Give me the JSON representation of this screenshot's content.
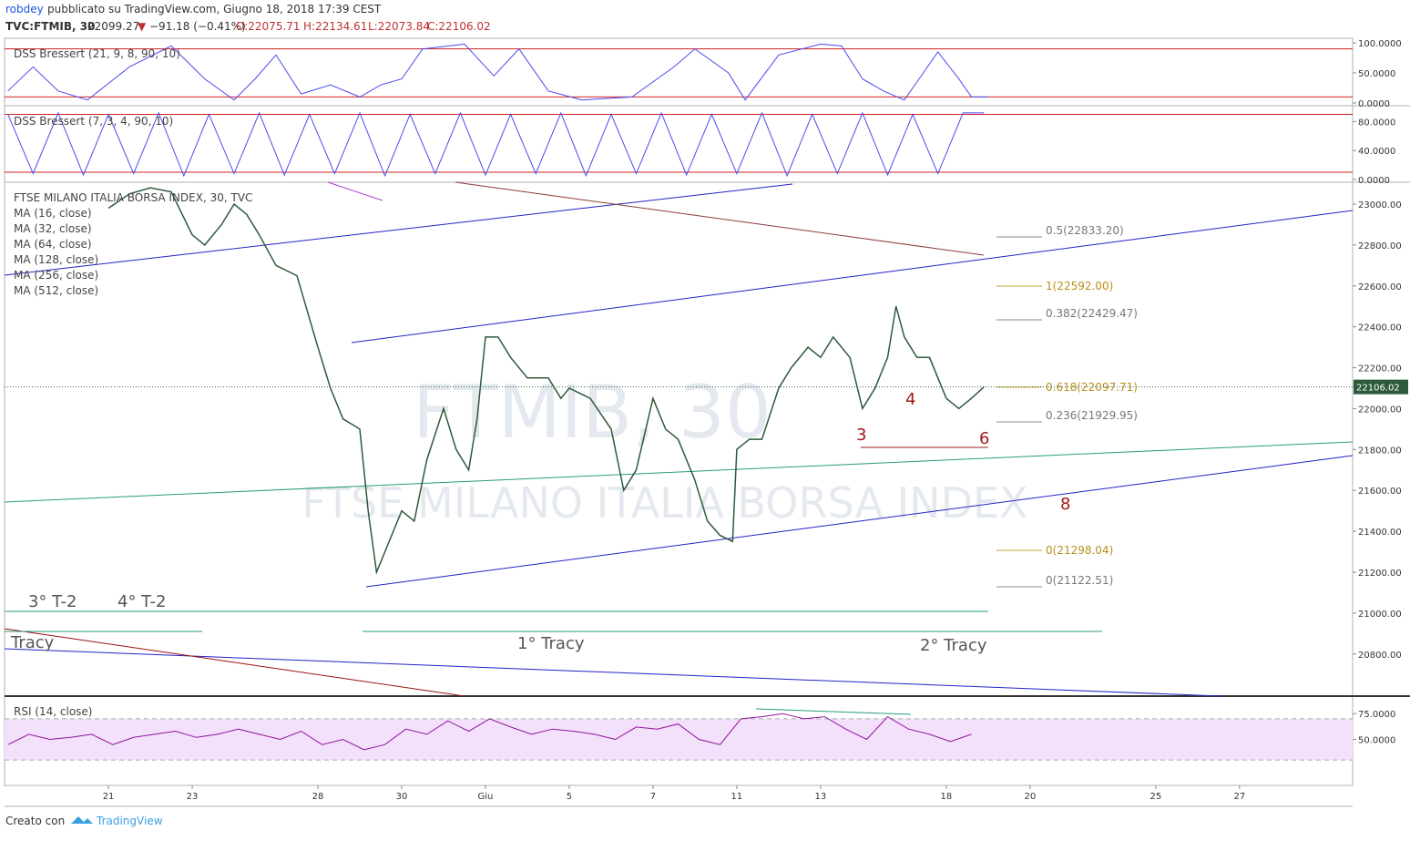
{
  "header": {
    "author": "robdey",
    "published": "pubblicato su TradingView.com, Giugno 18, 2018 17:39 CEST",
    "symbol": "TVC:FTMIB, 30",
    "price": "22099.27",
    "arrow": "▼",
    "change": "−91.18 (−0.41%)",
    "open": "O:22075.71",
    "high": "H:22134.61",
    "low": "L:22073.84",
    "close": "C:22106.02"
  },
  "footer": {
    "made_with": "Creato con",
    "brand": "TradingView"
  },
  "chart_data": [
    {
      "type": "line",
      "title": "DSS Bressert (21, 9, 8, 90, 10)",
      "color": "#4a4af0",
      "x": [
        -2.4,
        -1.8,
        -1.2,
        -0.5,
        0.5,
        1.5,
        2.3,
        3,
        3.5,
        4,
        4.6,
        5.3,
        6,
        6.5,
        7,
        7.5,
        8.5,
        9.2,
        9.8,
        10.5,
        11.3,
        12.5,
        13.5,
        14,
        14.8,
        15.2,
        16,
        17,
        17.5,
        18,
        18.5,
        19,
        19.8,
        20.3,
        20.6,
        21
      ],
      "values": [
        20,
        60,
        20,
        5,
        60,
        95,
        40,
        5,
        40,
        80,
        15,
        30,
        10,
        30,
        40,
        90,
        98,
        45,
        90,
        20,
        5,
        10,
        60,
        90,
        50,
        5,
        80,
        98,
        95,
        40,
        20,
        5,
        85,
        40,
        10,
        10
      ],
      "ylim": [
        -4.6,
        107.7
      ],
      "levels": [
        90,
        10
      ],
      "yticks": [
        {
          "value": 100,
          "label": "100.0000"
        },
        {
          "value": 50,
          "label": "50.0000"
        },
        {
          "value": 0,
          "label": "0.0000"
        }
      ]
    },
    {
      "type": "line",
      "title": "DSS Bressert (7, 3, 4, 90, 10)",
      "color": "#4a4af0",
      "x": [
        -2.4,
        -1.8,
        -1.2,
        -0.6,
        0,
        0.6,
        1.2,
        1.8,
        2.4,
        3,
        3.6,
        4.2,
        4.8,
        5.4,
        6,
        6.6,
        7.2,
        7.8,
        8.4,
        9,
        9.6,
        10.2,
        10.8,
        11.4,
        12,
        12.6,
        13.2,
        13.8,
        14.4,
        15,
        15.6,
        16.2,
        16.8,
        17.4,
        18,
        18.6,
        19.2,
        19.8,
        20.4,
        20.9
      ],
      "values": [
        90,
        8,
        92,
        6,
        90,
        8,
        92,
        5,
        90,
        8,
        92,
        6,
        90,
        8,
        92,
        5,
        90,
        8,
        92,
        6,
        90,
        8,
        92,
        5,
        90,
        8,
        92,
        6,
        90,
        8,
        92,
        5,
        90,
        8,
        92,
        6,
        90,
        8,
        92,
        92
      ],
      "ylim": [
        -3.9,
        101.9
      ],
      "levels": [
        90,
        10
      ],
      "yticks": [
        {
          "value": 80,
          "label": "80.0000"
        },
        {
          "value": 40,
          "label": "40.0000"
        },
        {
          "value": 0,
          "label": "0.0000"
        }
      ]
    },
    {
      "type": "line",
      "title": "FTSE MILANO ITALIA BORSA INDEX, 30, TVC",
      "color": "#2d5a3a",
      "legend": [
        "MA (16, close)",
        "MA (32, close)",
        "MA (64, close)",
        "MA (128, close)",
        "MA (256, close)",
        "MA (512, close)"
      ],
      "watermark_symbol": "FTMIB, 30",
      "watermark_name": "FTSE MILANO ITALIA BORSA INDEX",
      "x": [
        0,
        0.5,
        1,
        1.5,
        2,
        2.3,
        2.7,
        3,
        3.3,
        3.6,
        4,
        4.5,
        5,
        5.3,
        5.6,
        6,
        6.2,
        6.4,
        6.6,
        7,
        7.3,
        7.6,
        8,
        8.3,
        8.6,
        8.8,
        9,
        9.3,
        9.6,
        10,
        10.5,
        10.8,
        11,
        11.5,
        12,
        12.3,
        12.6,
        13,
        13.3,
        13.6,
        14,
        14.3,
        14.6,
        14.9,
        15,
        15.3,
        15.6,
        16,
        16.3,
        16.7,
        17,
        17.3,
        17.7,
        18,
        18.3,
        18.6,
        18.8,
        19,
        19.3,
        19.6,
        20,
        20.3,
        20.6,
        20.9
      ],
      "values": [
        22980,
        23050,
        23080,
        23060,
        22850,
        22800,
        22900,
        23000,
        22950,
        22850,
        22700,
        22650,
        22300,
        22100,
        21950,
        21900,
        21500,
        21200,
        21300,
        21500,
        21450,
        21750,
        22000,
        21800,
        21700,
        21950,
        22350,
        22350,
        22250,
        22150,
        22150,
        22050,
        22100,
        22050,
        21900,
        21600,
        21700,
        22050,
        21900,
        21850,
        21650,
        21450,
        21380,
        21350,
        21800,
        21850,
        21850,
        22100,
        22200,
        22300,
        22250,
        22350,
        22250,
        22000,
        22100,
        22250,
        22500,
        22350,
        22250,
        22250,
        22050,
        22000,
        22050,
        22106
      ],
      "last_price": 22106.02,
      "ylim": [
        20594,
        23107
      ],
      "yticks": [
        {
          "value": 23000,
          "label": "23000.00"
        },
        {
          "value": 22800,
          "label": "22800.00"
        },
        {
          "value": 22600,
          "label": "22600.00"
        },
        {
          "value": 22400,
          "label": "22400.00"
        },
        {
          "value": 22200,
          "label": "22200.00"
        },
        {
          "value": 22000,
          "label": "22000.00"
        },
        {
          "value": 21800,
          "label": "21800.00"
        },
        {
          "value": 21600,
          "label": "21600.00"
        },
        {
          "value": 21400,
          "label": "21400.00"
        },
        {
          "value": 21200,
          "label": "21200.00"
        },
        {
          "value": 21000,
          "label": "21000.00"
        },
        {
          "value": 20800,
          "label": "20800.00"
        }
      ],
      "fib_labels": [
        "0.5(22833.20)",
        "1(22592.00)",
        "0.382(22429.47)",
        "0.618(22097.71)",
        "0.236(21929.95)",
        "0(21298.04)",
        "0(21122.51)"
      ],
      "annotations": [
        "3",
        "4",
        "6",
        "8",
        "3° T-2",
        "4° T-2",
        "Tracy",
        "1° Tracy",
        "2° Tracy"
      ]
    },
    {
      "type": "line",
      "title": "RSI (14, close)",
      "color": "#8e1599",
      "x": [
        -2.4,
        -1.9,
        -1.4,
        -0.9,
        -0.4,
        0.1,
        0.6,
        1.1,
        1.6,
        2.1,
        2.6,
        3.1,
        3.6,
        4.1,
        4.6,
        5.1,
        5.6,
        6.1,
        6.6,
        7.1,
        7.6,
        8.1,
        8.6,
        9.1,
        9.6,
        10.1,
        10.6,
        11.1,
        11.6,
        12.1,
        12.6,
        13.1,
        13.6,
        14.1,
        14.6,
        15.1,
        15.6,
        16.1,
        16.6,
        17.1,
        17.6,
        18.1,
        18.6,
        19.1,
        19.6,
        20.1,
        20.6
      ],
      "values": [
        45,
        55,
        50,
        52,
        55,
        45,
        52,
        55,
        58,
        52,
        55,
        60,
        55,
        50,
        58,
        45,
        50,
        40,
        45,
        60,
        55,
        68,
        58,
        70,
        62,
        55,
        60,
        58,
        55,
        50,
        62,
        60,
        65,
        50,
        45,
        70,
        72,
        75,
        70,
        72,
        60,
        50,
        72,
        60,
        55,
        48,
        55
      ],
      "ylim": [
        5.4,
        92
      ],
      "band": [
        70,
        30
      ],
      "yticks": [
        {
          "value": 75,
          "label": "75.0000"
        },
        {
          "value": 50,
          "label": "50.0000"
        }
      ],
      "xlim": [
        -2.48,
        29.7
      ],
      "xticks": [
        {
          "value": 0,
          "label": "21"
        },
        {
          "value": 2,
          "label": "23"
        },
        {
          "value": 5,
          "label": "28"
        },
        {
          "value": 7,
          "label": "30"
        },
        {
          "value": 9,
          "label": "Giu"
        },
        {
          "value": 11,
          "label": "5"
        },
        {
          "value": 13,
          "label": "7"
        },
        {
          "value": 15,
          "label": "11"
        },
        {
          "value": 17,
          "label": "13"
        },
        {
          "value": 20,
          "label": "18"
        },
        {
          "value": 22,
          "label": "20"
        },
        {
          "value": 25,
          "label": "25"
        },
        {
          "value": 27,
          "label": "27"
        }
      ]
    }
  ]
}
